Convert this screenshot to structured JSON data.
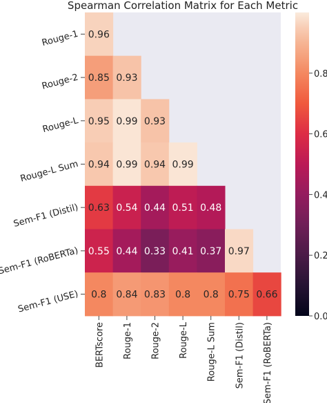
{
  "chart_data": {
    "type": "heatmap",
    "title": "Spearman Correlation Matrix for Each Metric",
    "row_labels": [
      "Rouge-1",
      "Rouge-2",
      "Rouge-L",
      "Rouge-L Sum",
      "Sem-F1 (Distil)",
      "Sem-F1 (RoBERTa)",
      "Sem-F1 (USE)"
    ],
    "col_labels": [
      "BERTscore",
      "Rouge-1",
      "Rouge-2",
      "Rouge-L",
      "Rouge-L Sum",
      "Sem-F1 (Distil)",
      "Sem-F1 (RoBERTa)"
    ],
    "values": [
      [
        0.96
      ],
      [
        0.85,
        0.93
      ],
      [
        0.95,
        0.99,
        0.93
      ],
      [
        0.94,
        0.99,
        0.94,
        0.99
      ],
      [
        0.63,
        0.54,
        0.44,
        0.51,
        0.48
      ],
      [
        0.55,
        0.44,
        0.33,
        0.41,
        0.37,
        0.97
      ],
      [
        0.8,
        0.84,
        0.83,
        0.8,
        0.8,
        0.75,
        0.66
      ]
    ],
    "mask": "upper-triangle",
    "colorbar": {
      "ticks": [
        "0.0",
        "0.2",
        "0.4",
        "0.6",
        "0.8"
      ],
      "range": [
        0,
        1
      ],
      "colormap": "rocket"
    },
    "colors": {
      "masked_background": "#eaeaf2"
    }
  }
}
